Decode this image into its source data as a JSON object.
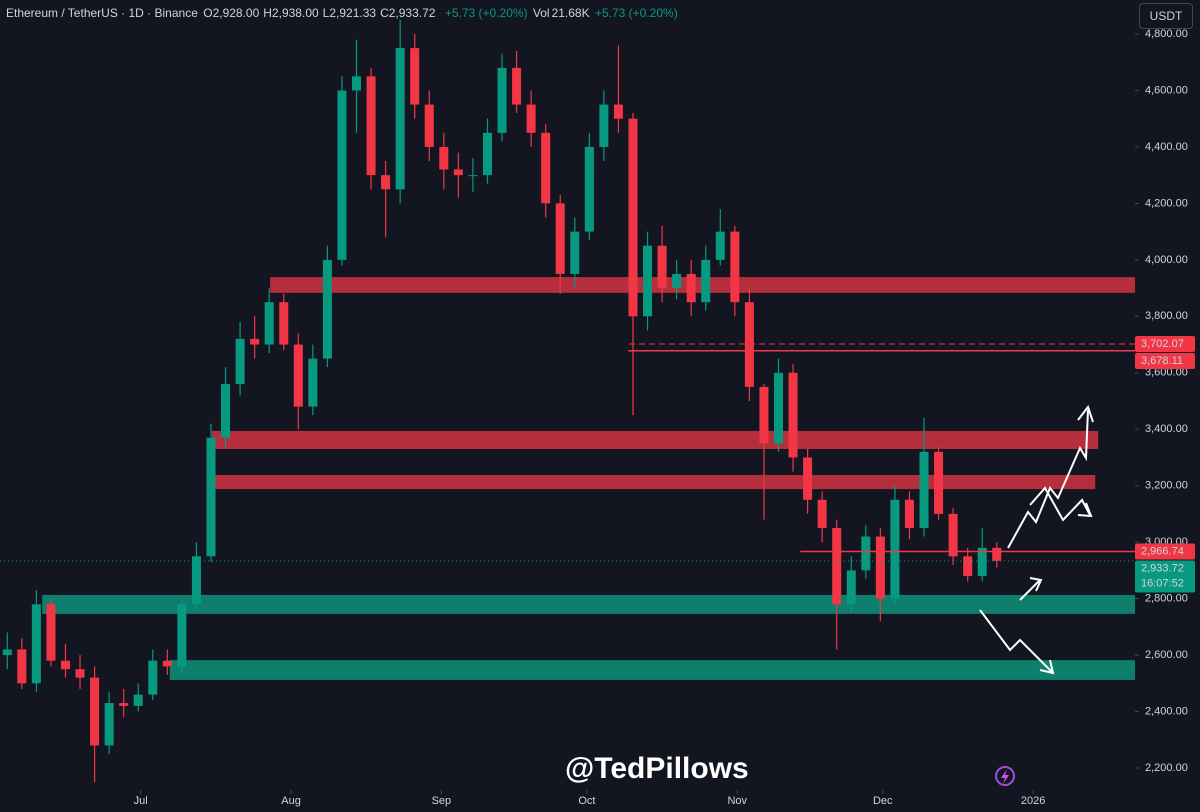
{
  "chart_data": {
    "type": "candlestick",
    "symbol": "Ethereum / TetherUS · 1D · Binance",
    "ohlc_header": [
      {
        "label": "O",
        "value": "2,928.00"
      },
      {
        "label": "H",
        "value": "2,938.00"
      },
      {
        "label": "L",
        "value": "2,921.33"
      },
      {
        "label": "C",
        "value": "2,933.72"
      }
    ],
    "change": "+5.73 (+0.20%)",
    "volume": {
      "label": "Vol",
      "value": "21.68K",
      "change": "+5.73 (+0.20%)"
    },
    "currency": "USDT",
    "watermark": "@TedPillows",
    "xlim": [
      0,
      234
    ],
    "xticks": [
      {
        "value": 29,
        "label": "Jul"
      },
      {
        "value": 60,
        "label": "Aug"
      },
      {
        "value": 91,
        "label": "Sep"
      },
      {
        "value": 121,
        "label": "Oct"
      },
      {
        "value": 152,
        "label": "Nov"
      },
      {
        "value": 182,
        "label": "Dec"
      },
      {
        "value": 213,
        "label": "2026"
      }
    ],
    "ylim": [
      2200,
      4800
    ],
    "yticks": [
      {
        "value": 2200,
        "label": "2,200.00"
      },
      {
        "value": 2400,
        "label": "2,400.00"
      },
      {
        "value": 2600,
        "label": "2,600.00"
      },
      {
        "value": 2800,
        "label": "2,800.00"
      },
      {
        "value": 3000,
        "label": "3,000.00"
      },
      {
        "value": 3200,
        "label": "3,200.00"
      },
      {
        "value": 3400,
        "label": "3,400.00"
      },
      {
        "value": 3600,
        "label": "3,600.00"
      },
      {
        "value": 3800,
        "label": "3,800.00"
      },
      {
        "value": 4000,
        "label": "4,000.00"
      },
      {
        "value": 4200,
        "label": "4,200.00"
      },
      {
        "value": 4400,
        "label": "4,400.00"
      },
      {
        "value": 4600,
        "label": "4,600.00"
      },
      {
        "value": 4800,
        "label": "4,800.00"
      }
    ],
    "candle_days": 3,
    "up_color": "#089981",
    "down_color": "#f23645",
    "open": [
      2600,
      2620,
      2500,
      2780,
      2580,
      2550,
      2520,
      2280,
      2430,
      2420,
      2460,
      2580,
      2560,
      2780,
      2950,
      3370,
      3560,
      3720,
      3700,
      3850,
      3700,
      3480,
      3650,
      4000,
      4600,
      4650,
      4300,
      4250,
      4750,
      4550,
      4400,
      4320,
      4300,
      4300,
      4450,
      4680,
      4550,
      4450,
      4200,
      3950,
      4100,
      4400,
      4550,
      4500,
      3800,
      4050,
      3900,
      3950,
      3850,
      4000,
      4100,
      3850,
      3550,
      3350,
      3600,
      3300,
      3150,
      3050,
      2780,
      2900,
      3020,
      2800,
      3150,
      3050,
      3320,
      3100,
      2950,
      2880,
      2980
    ],
    "high": [
      2680,
      2660,
      2830,
      2800,
      2640,
      2600,
      2560,
      2470,
      2480,
      2500,
      2620,
      2620,
      2800,
      3000,
      3420,
      3620,
      3780,
      3800,
      3900,
      3880,
      3740,
      3700,
      4050,
      4650,
      4780,
      4680,
      4350,
      4850,
      4800,
      4600,
      4450,
      4380,
      4360,
      4500,
      4730,
      4740,
      4600,
      4480,
      4230,
      4150,
      4450,
      4600,
      4760,
      4520,
      4100,
      4120,
      4000,
      4000,
      4050,
      4180,
      4120,
      3900,
      3560,
      3650,
      3630,
      3330,
      3180,
      3080,
      2950,
      3060,
      3050,
      3200,
      3180,
      3440,
      3340,
      3120,
      2980,
      3050,
      3000
    ],
    "low": [
      2550,
      2480,
      2470,
      2560,
      2520,
      2480,
      2150,
      2250,
      2380,
      2400,
      2440,
      2530,
      2540,
      2760,
      2930,
      3330,
      3520,
      3650,
      3670,
      3680,
      3400,
      3450,
      3620,
      3980,
      4450,
      4250,
      4080,
      4200,
      4500,
      4350,
      4250,
      4220,
      4240,
      4270,
      4420,
      4520,
      4400,
      4150,
      3880,
      3900,
      4070,
      4350,
      4450,
      3450,
      3750,
      3850,
      3860,
      3800,
      3820,
      3980,
      3800,
      3500,
      3080,
      3320,
      3250,
      3100,
      3000,
      2620,
      2750,
      2870,
      2720,
      2780,
      3010,
      3020,
      3080,
      2920,
      2860,
      2860,
      2910
    ],
    "close": [
      2620,
      2500,
      2780,
      2580,
      2550,
      2520,
      2280,
      2430,
      2420,
      2460,
      2580,
      2560,
      2780,
      2950,
      3370,
      3560,
      3720,
      3700,
      3850,
      3700,
      3480,
      3650,
      4000,
      4600,
      4650,
      4300,
      4250,
      4750,
      4550,
      4400,
      4320,
      4300,
      4300,
      4450,
      4680,
      4550,
      4450,
      4200,
      3950,
      4100,
      4400,
      4550,
      4500,
      3800,
      4050,
      3900,
      3950,
      3850,
      4000,
      4100,
      3850,
      3550,
      3350,
      3600,
      3300,
      3150,
      3050,
      2780,
      2900,
      3020,
      2800,
      3150,
      3050,
      3320,
      3100,
      2950,
      2880,
      2980,
      2933.72
    ],
    "zones": [
      {
        "low": 3883,
        "high": 3939,
        "from": 55.7,
        "to": 234,
        "color": "#c8313f"
      },
      {
        "low": 3330,
        "high": 3394,
        "from": 43.7,
        "to": 226.4,
        "color": "#c8313f"
      },
      {
        "low": 3188,
        "high": 3238,
        "from": 42.9,
        "to": 225.8,
        "color": "#c8313f"
      },
      {
        "low": 2746,
        "high": 2813,
        "from": 8.7,
        "to": 234,
        "color": "#0e8a76"
      },
      {
        "low": 2512,
        "high": 2582,
        "from": 35,
        "to": 234,
        "color": "#0e8a76"
      }
    ],
    "levels": [
      {
        "value": 3702.07,
        "label": "3,702.07",
        "from": 129.7,
        "dashed": true,
        "color": "#f23645"
      },
      {
        "value": 3678.11,
        "label": "3,678.11",
        "from": 129.5,
        "dashed": false,
        "color": "#f23645"
      },
      {
        "value": 2966.74,
        "label": "2,966.74",
        "from": 165,
        "dashed": false,
        "color": "#f23645"
      },
      {
        "value": 2933.72,
        "label": "2,933.72",
        "from": 0,
        "dashed": true,
        "color": "#089981"
      }
    ],
    "countdown": "16:07:52"
  }
}
